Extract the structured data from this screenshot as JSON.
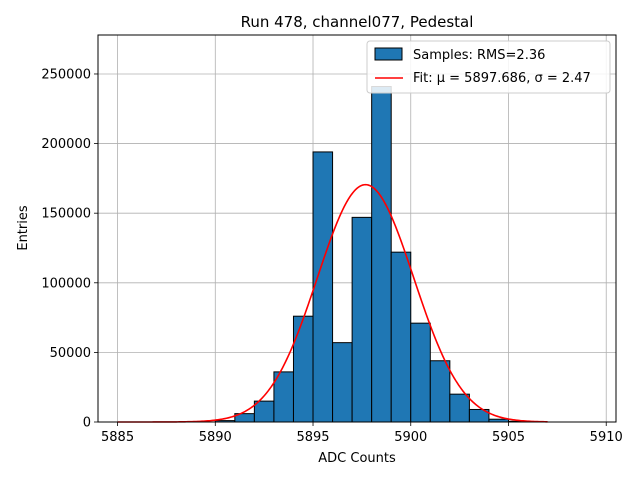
{
  "chart_data": {
    "type": "bar",
    "title": "Run 478, channel077, Pedestal",
    "xlabel": "ADC Counts",
    "ylabel": "Entries",
    "xlim": [
      5884,
      5910.5
    ],
    "ylim": [
      0,
      278000
    ],
    "xticks": [
      5885,
      5890,
      5895,
      5900,
      5905,
      5910
    ],
    "yticks": [
      0,
      50000,
      100000,
      150000,
      200000,
      250000
    ],
    "grid": true,
    "legend_position": "top-right",
    "bin_width": 1,
    "bins": [
      {
        "x": 5890,
        "value": 1000
      },
      {
        "x": 5891,
        "value": 6000
      },
      {
        "x": 5892,
        "value": 15000
      },
      {
        "x": 5893,
        "value": 36000
      },
      {
        "x": 5894,
        "value": 76000
      },
      {
        "x": 5895,
        "value": 194000
      },
      {
        "x": 5896,
        "value": 57000
      },
      {
        "x": 5897,
        "value": 147000
      },
      {
        "x": 5898,
        "value": 241000
      },
      {
        "x": 5899,
        "value": 122000
      },
      {
        "x": 5900,
        "value": 71000
      },
      {
        "x": 5901,
        "value": 44000
      },
      {
        "x": 5902,
        "value": 20000
      },
      {
        "x": 5903,
        "value": 9000
      },
      {
        "x": 5904,
        "value": 2000
      },
      {
        "x": 5905,
        "value": 500
      }
    ],
    "fit": {
      "mu": 5897.686,
      "sigma": 2.47,
      "amplitude": 170500,
      "x_range": [
        5885,
        5907
      ]
    },
    "series": [
      {
        "name": "Samples: RMS=2.36",
        "kind": "histogram",
        "color": "#1f77b4"
      },
      {
        "name": "Fit: μ = 5897.686, σ = 2.47",
        "kind": "line",
        "color": "#ff0000"
      }
    ]
  }
}
